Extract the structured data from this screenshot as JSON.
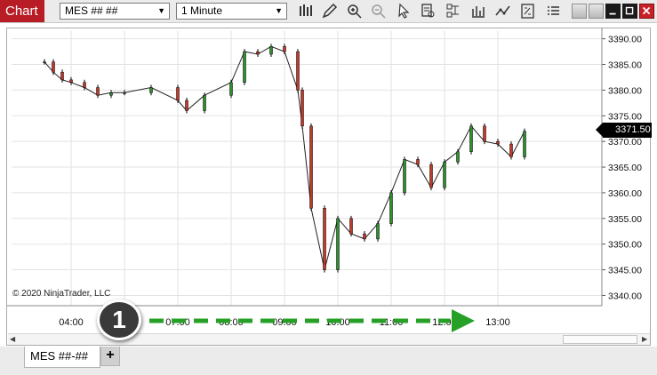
{
  "toolbar": {
    "chart_label": "Chart",
    "instrument": "MES ## ##",
    "interval": "1 Minute",
    "tools": [
      "bar-type-icon",
      "drawing-tool-pencil-icon",
      "zoom-in-icon",
      "zoom-out-icon",
      "pointer-icon",
      "data-box-icon",
      "templates-icon",
      "indicators-icon",
      "strategies-icon",
      "properties-icon",
      "menu-list-icon"
    ]
  },
  "chart": {
    "copyright": "© 2020 NinjaTrader, LLC",
    "last_price": "3371.50",
    "y_axis_labels": [
      "3390.00",
      "3385.00",
      "3380.00",
      "3375.00",
      "3370.00",
      "3365.00",
      "3360.00",
      "3355.00",
      "3350.00",
      "3345.00",
      "3340.00"
    ],
    "x_axis_labels": [
      "04:00",
      "06:00",
      "07:00",
      "08:00",
      "09:00",
      "10:00",
      "11:00",
      "12:00",
      "13:00"
    ],
    "colors": {
      "up": "#2f8f2f",
      "down": "#c0392b",
      "wick": "#000000",
      "grid": "#e2e2e2"
    }
  },
  "callout": {
    "number": "1",
    "color": "#27a027"
  },
  "tabs": {
    "items": [
      {
        "label": "MES ##-##"
      }
    ],
    "add_label": "+"
  },
  "chart_data": {
    "type": "line",
    "title": "",
    "x": [
      "03:00",
      "03:20",
      "03:40",
      "04:00",
      "04:30",
      "05:00",
      "05:30",
      "06:00",
      "06:30",
      "07:00",
      "07:10",
      "07:30",
      "08:00",
      "08:15",
      "08:30",
      "08:45",
      "09:00",
      "09:15",
      "09:20",
      "09:30",
      "09:45",
      "10:00",
      "10:15",
      "10:30",
      "10:45",
      "11:00",
      "11:15",
      "11:30",
      "11:45",
      "12:00",
      "12:15",
      "12:30",
      "12:45",
      "13:00",
      "13:15",
      "13:30"
    ],
    "series": [
      {
        "values": [
          3385.5,
          3383.5,
          3382.0,
          3381.5,
          3380.5,
          3379.0,
          3379.5,
          3379.5,
          3380.5,
          3378.0,
          3376.0,
          3379.0,
          3381.5,
          3387.5,
          3387.0,
          3388.5,
          3387.5,
          3380.0,
          3373.0,
          3357.0,
          3345.0,
          3355.0,
          3352.0,
          3351.0,
          3354.0,
          3360.0,
          3366.5,
          3365.5,
          3361.0,
          3366.0,
          3368.0,
          3373.0,
          3370.0,
          3369.5,
          3367.0,
          3372.0
        ]
      }
    ],
    "ylim": [
      3338.0,
      3391.5
    ],
    "ylabel": "",
    "xlabel": "",
    "grid": true
  }
}
